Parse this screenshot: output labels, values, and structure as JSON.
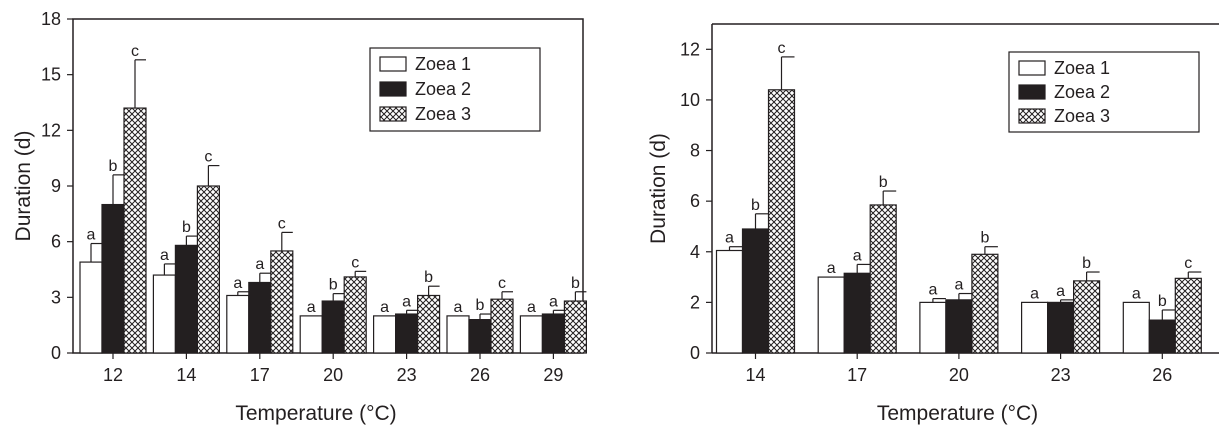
{
  "chart_data": [
    {
      "type": "bar",
      "xlabel": "Temperature (°C)",
      "ylabel": "Duration (d)",
      "ylim": [
        0,
        18
      ],
      "yticks": [
        0,
        3,
        6,
        9,
        12,
        15,
        18
      ],
      "grid": false,
      "legend_position": "top-right",
      "categories": [
        "12",
        "14",
        "17",
        "20",
        "23",
        "26",
        "29"
      ],
      "series": [
        {
          "name": "Zoea 1",
          "fill": "white",
          "values": [
            4.9,
            4.2,
            3.1,
            2.0,
            2.0,
            2.0,
            2.0
          ],
          "errors": [
            1.0,
            0.6,
            0.2,
            0.0,
            0.0,
            0.0,
            0.0
          ],
          "labels": [
            "a",
            "a",
            "a",
            "a",
            "a",
            "a",
            "a"
          ]
        },
        {
          "name": "Zoea 2",
          "fill": "black",
          "values": [
            8.0,
            5.8,
            3.8,
            2.8,
            2.1,
            1.8,
            2.1
          ],
          "errors": [
            1.6,
            0.5,
            0.5,
            0.4,
            0.2,
            0.3,
            0.2
          ],
          "labels": [
            "b",
            "b",
            "a",
            "b",
            "a",
            "b",
            "a"
          ]
        },
        {
          "name": "Zoea 3",
          "fill": "crosshatch",
          "values": [
            13.2,
            9.0,
            5.5,
            4.1,
            3.1,
            2.9,
            2.8
          ],
          "errors": [
            2.6,
            1.1,
            1.0,
            0.3,
            0.5,
            0.4,
            0.5
          ],
          "labels": [
            "c",
            "c",
            "c",
            "c",
            "b",
            "c",
            "b"
          ]
        }
      ]
    },
    {
      "type": "bar",
      "xlabel": "Temperature (°C)",
      "ylabel": "Duration (d)",
      "ylim": [
        0,
        13
      ],
      "yticks": [
        0,
        2,
        4,
        6,
        8,
        10,
        12
      ],
      "grid": false,
      "legend_position": "top-right",
      "categories": [
        "14",
        "17",
        "20",
        "23",
        "26"
      ],
      "series": [
        {
          "name": "Zoea 1",
          "fill": "white",
          "values": [
            4.05,
            3.0,
            2.0,
            2.0,
            2.0
          ],
          "errors": [
            0.15,
            0.0,
            0.15,
            0.0,
            0.0
          ],
          "labels": [
            "a",
            "a",
            "a",
            "a",
            "a"
          ]
        },
        {
          "name": "Zoea 2",
          "fill": "black",
          "values": [
            4.9,
            3.15,
            2.1,
            2.0,
            1.3
          ],
          "errors": [
            0.6,
            0.35,
            0.25,
            0.1,
            0.4
          ],
          "labels": [
            "b",
            "a",
            "a",
            "a",
            "b"
          ]
        },
        {
          "name": "Zoea 3",
          "fill": "crosshatch",
          "values": [
            10.4,
            5.85,
            3.9,
            2.85,
            2.95
          ],
          "errors": [
            1.3,
            0.55,
            0.3,
            0.35,
            0.25
          ],
          "labels": [
            "c",
            "b",
            "b",
            "b",
            "c"
          ]
        }
      ]
    }
  ]
}
